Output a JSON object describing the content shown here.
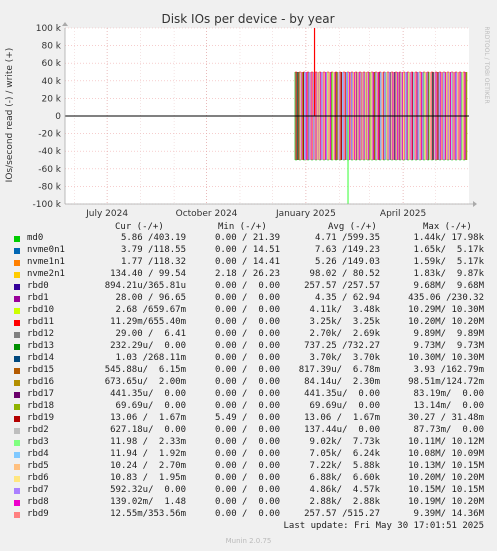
{
  "chart_data": {
    "type": "line",
    "title": "Disk IOs per device - by year",
    "ylabel": "IOs/second read (-) / write (+)",
    "side_label": "RRDTOOL / TOBI OETIKER",
    "ylim": [
      -100000,
      100000
    ],
    "y_ticks": [
      {
        "value": 100000,
        "label": "100 k"
      },
      {
        "value": 80000,
        "label": "80 k"
      },
      {
        "value": 60000,
        "label": "60 k"
      },
      {
        "value": 40000,
        "label": "40 k"
      },
      {
        "value": 20000,
        "label": "20 k"
      },
      {
        "value": 0,
        "label": "0"
      },
      {
        "value": -20000,
        "label": "-20 k"
      },
      {
        "value": -40000,
        "label": "-40 k"
      },
      {
        "value": -60000,
        "label": "-60 k"
      },
      {
        "value": -80000,
        "label": "-80 k"
      },
      {
        "value": -100000,
        "label": "-100 k"
      }
    ],
    "xlim": [
      "2024-05-23",
      "2025-06-01"
    ],
    "x_ticks": [
      {
        "date": "2024-07-01",
        "label": "July 2024"
      },
      {
        "date": "2024-10-01",
        "label": "October 2024"
      },
      {
        "date": "2025-01-01",
        "label": "January 2025"
      },
      {
        "date": "2025-04-01",
        "label": "April 2025"
      }
    ],
    "activity_start": "2024-12-22",
    "activity_end": "2025-05-30",
    "activity_level": 50000,
    "spikes": [
      {
        "date": "2025-01-09",
        "value": 100000,
        "color": "#ff0000"
      },
      {
        "date": "2025-02-09",
        "value": -100000,
        "color": "#55ff55"
      }
    ],
    "legend_header": {
      "cur": "Cur (-/+)",
      "min": "Min (-/+)",
      "avg": "Avg (-/+)",
      "max": "Max (-/+)"
    },
    "series": [
      {
        "name": "md0",
        "color": "#00cc00",
        "cur": "5.86 /403.19",
        "min": "0.00 / 21.39",
        "avg": "4.71 /599.35",
        "max": "1.44k/ 17.98k"
      },
      {
        "name": "nvme0n1",
        "color": "#0066b3",
        "cur": "3.79 /118.55",
        "min": "0.00 / 14.51",
        "avg": "7.63 /149.23",
        "max": "1.65k/  5.17k"
      },
      {
        "name": "nvme1n1",
        "color": "#ff8000",
        "cur": "1.77 /118.32",
        "min": "0.00 / 14.41",
        "avg": "5.26 /149.03",
        "max": "1.59k/  5.17k"
      },
      {
        "name": "nvme2n1",
        "color": "#ffcc00",
        "cur": "134.40 / 99.54",
        "min": "2.18 / 26.23",
        "avg": "98.02 / 80.52",
        "max": "1.83k/  9.87k"
      },
      {
        "name": "rbd0",
        "color": "#330099",
        "cur": "894.21u/365.81u",
        "min": "0.00 /  0.00",
        "avg": "257.57 /257.57",
        "max": "9.68M/  9.68M"
      },
      {
        "name": "rbd1",
        "color": "#990099",
        "cur": "28.00 / 96.65",
        "min": "0.00 /  0.00",
        "avg": "4.35 / 62.94",
        "max": "435.06 /230.32"
      },
      {
        "name": "rbd10",
        "color": "#ccff00",
        "cur": "2.68 /659.67m",
        "min": "0.00 /  0.00",
        "avg": "4.11k/  3.48k",
        "max": "10.29M/ 10.30M"
      },
      {
        "name": "rbd11",
        "color": "#ff0000",
        "cur": "11.29m/655.40m",
        "min": "0.00 /  0.00",
        "avg": "3.25k/  3.25k",
        "max": "10.20M/ 10.20M"
      },
      {
        "name": "rbd12",
        "color": "#808080",
        "cur": "29.00 /  6.41",
        "min": "0.00 /  0.00",
        "avg": "2.70k/  2.69k",
        "max": "9.89M/  9.89M"
      },
      {
        "name": "rbd13",
        "color": "#008f00",
        "cur": "232.29u/  0.00",
        "min": "0.00 /  0.00",
        "avg": "737.25 /732.27",
        "max": "9.73M/  9.73M"
      },
      {
        "name": "rbd14",
        "color": "#00487d",
        "cur": "1.03 /268.11m",
        "min": "0.00 /  0.00",
        "avg": "3.70k/  3.70k",
        "max": "10.30M/ 10.30M"
      },
      {
        "name": "rbd15",
        "color": "#b35a00",
        "cur": "545.88u/  6.15m",
        "min": "0.00 /  0.00",
        "avg": "817.39u/  6.78m",
        "max": "3.93 /162.79m"
      },
      {
        "name": "rbd16",
        "color": "#b38f00",
        "cur": "673.65u/  2.00m",
        "min": "0.00 /  0.00",
        "avg": "84.14u/  2.30m",
        "max": "98.51m/124.72m"
      },
      {
        "name": "rbd17",
        "color": "#6b006b",
        "cur": "441.35u/  0.00",
        "min": "0.00 /  0.00",
        "avg": "441.35u/  0.00",
        "max": "83.19m/  0.00"
      },
      {
        "name": "rbd18",
        "color": "#8fb300",
        "cur": "69.69u/  0.00",
        "min": "0.00 /  0.00",
        "avg": "69.69u/  0.00",
        "max": "13.14m/  0.00"
      },
      {
        "name": "rbd19",
        "color": "#b30000",
        "cur": "13.06 /  1.67m",
        "min": "5.49 /  0.00",
        "avg": "13.06 /  1.67m",
        "max": "30.27 / 31.48m"
      },
      {
        "name": "rbd2",
        "color": "#bebebe",
        "cur": "627.18u/  0.00",
        "min": "0.00 /  0.00",
        "avg": "137.44u/  0.00",
        "max": "87.73m/  0.00"
      },
      {
        "name": "rbd3",
        "color": "#80ff80",
        "cur": "11.98 /  2.33m",
        "min": "0.00 /  0.00",
        "avg": "9.02k/  7.73k",
        "max": "10.11M/ 10.12M"
      },
      {
        "name": "rbd4",
        "color": "#80c9ff",
        "cur": "11.94 /  1.92m",
        "min": "0.00 /  0.00",
        "avg": "7.05k/  6.24k",
        "max": "10.08M/ 10.09M"
      },
      {
        "name": "rbd5",
        "color": "#ffc080",
        "cur": "10.24 /  2.70m",
        "min": "0.00 /  0.00",
        "avg": "7.22k/  5.88k",
        "max": "10.13M/ 10.15M"
      },
      {
        "name": "rbd6",
        "color": "#ffe680",
        "cur": "10.83 /  1.95m",
        "min": "0.00 /  0.00",
        "avg": "6.88k/  6.60k",
        "max": "10.20M/ 10.20M"
      },
      {
        "name": "rbd7",
        "color": "#aa80ff",
        "cur": "592.32u/  0.00",
        "min": "0.00 /  0.00",
        "avg": "4.86k/  4.57k",
        "max": "10.15M/ 10.15M"
      },
      {
        "name": "rbd8",
        "color": "#ee00cc",
        "cur": "139.02m/  1.48",
        "min": "0.00 /  0.00",
        "avg": "2.88k/  2.88k",
        "max": "10.19M/ 10.20M"
      },
      {
        "name": "rbd9",
        "color": "#ff8080",
        "cur": "12.55m/353.56m",
        "min": "0.00 /  0.00",
        "avg": "257.57 /515.27",
        "max": "9.39M/ 14.36M"
      }
    ]
  },
  "footer": {
    "last_update": "Last update: Fri May 30 17:01:51 2025",
    "munin_version": "Munin 2.0.75"
  }
}
